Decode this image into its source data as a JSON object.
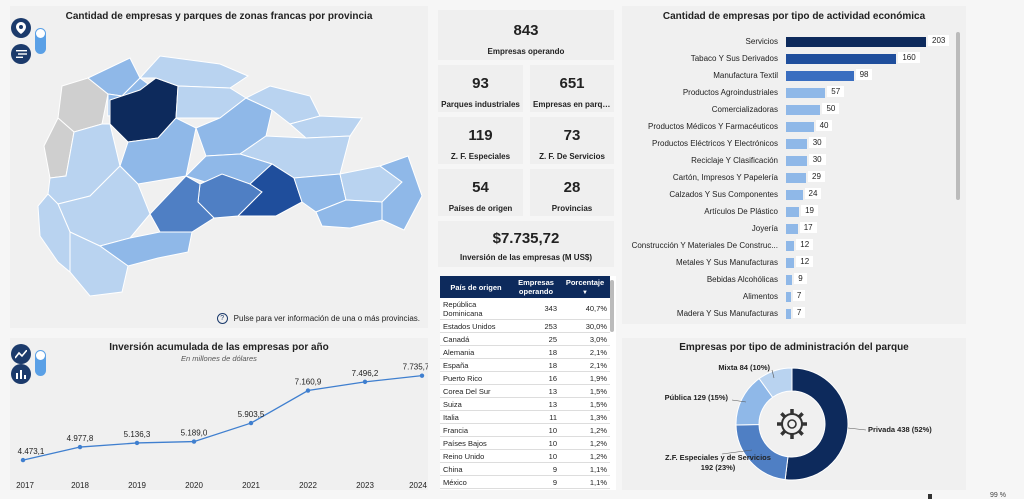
{
  "map": {
    "title": "Cantidad de empresas y parques de zonas francas por provincia",
    "hint": "Pulse para ver información de una o más provincias."
  },
  "kpis": {
    "empresas": {
      "value": "843",
      "label": "Empresas operando"
    },
    "parques": {
      "value": "93",
      "label": "Parques industriales"
    },
    "empresas_parque": {
      "value": "651",
      "label": "Empresas en parque..."
    },
    "zf_especiales": {
      "value": "119",
      "label": "Z. F. Especiales"
    },
    "zf_servicios": {
      "value": "73",
      "label": "Z. F. De Servicios"
    },
    "paises": {
      "value": "54",
      "label": "Países de origen"
    },
    "provincias": {
      "value": "28",
      "label": "Provincias"
    },
    "inversion": {
      "value": "$7.735,72",
      "label": "Inversión de las empresas (M US$)"
    }
  },
  "table": {
    "headers": [
      "País de origen",
      "Empresas operando",
      "Porcentaje"
    ],
    "rows": [
      [
        "República Dominicana",
        "343",
        "40,7%"
      ],
      [
        "Estados Unidos",
        "253",
        "30,0%"
      ],
      [
        "Canadá",
        "25",
        "3,0%"
      ],
      [
        "Alemania",
        "18",
        "2,1%"
      ],
      [
        "España",
        "18",
        "2,1%"
      ],
      [
        "Puerto Rico",
        "16",
        "1,9%"
      ],
      [
        "Corea Del Sur",
        "13",
        "1,5%"
      ],
      [
        "Suiza",
        "13",
        "1,5%"
      ],
      [
        "Italia",
        "11",
        "1,3%"
      ],
      [
        "Francia",
        "10",
        "1,2%"
      ],
      [
        "Países Bajos",
        "10",
        "1,2%"
      ],
      [
        "Reino Unido",
        "10",
        "1,2%"
      ],
      [
        "China",
        "9",
        "1,1%"
      ],
      [
        "México",
        "9",
        "1,1%"
      ]
    ]
  },
  "colors": {
    "navy": "#0d2a5c",
    "blue": "#1f4e9c",
    "mid": "#4f7fc4",
    "light": "#8fb8e8",
    "lightest": "#b9d3f0",
    "gray": "#cfcfcf",
    "line": "#3f7fcf"
  },
  "chart_data": [
    {
      "type": "bar",
      "title": "Cantidad de empresas por tipo de actividad económica",
      "categories": [
        "Servicios",
        "Tabaco Y Sus Derivados",
        "Manufactura Textil",
        "Productos Agroindustriales",
        "Comercializadoras",
        "Productos Médicos Y Farmacéuticos",
        "Productos Eléctricos Y Electrónicos",
        "Reciclaje Y Clasificación",
        "Cartón, Impresos Y Papelería",
        "Calzados Y Sus Componentes",
        "Artículos De Plástico",
        "Joyería",
        "Construcción Y Materiales De Construc...",
        "Metales Y Sus Manufacturas",
        "Bebidas Alcohólicas",
        "Alimentos",
        "Madera Y Sus Manufacturas"
      ],
      "values": [
        203,
        160,
        98,
        57,
        50,
        40,
        30,
        30,
        29,
        24,
        19,
        17,
        12,
        12,
        9,
        7,
        7
      ]
    },
    {
      "type": "line",
      "title": "Inversión acumulada de las empresas por año",
      "subtitle": "En millones de dólares",
      "categories": [
        "2017",
        "2018",
        "2019",
        "2020",
        "2021",
        "2022",
        "2023",
        "2024"
      ],
      "values": [
        4473.1,
        4977.8,
        5136.3,
        5189.0,
        5903.5,
        7160.9,
        7496.2,
        7735.7
      ],
      "labels": [
        "4.473,1",
        "4.977,8",
        "5.136,3",
        "5.189,0",
        "5.903,5",
        "7.160,9",
        "7.496,2",
        "7.735,7"
      ]
    },
    {
      "type": "pie",
      "title": "Empresas por tipo de administración del parque",
      "slices": [
        {
          "name": "Privada 438 (52%)",
          "value": 438,
          "color": "#0d2a5c"
        },
        {
          "name": "Z.F. Especiales y de Servicios 192 (23%)",
          "value": 192,
          "color": "#4f7fc4"
        },
        {
          "name": "Pública 129 (15%)",
          "value": 129,
          "color": "#8fb8e8"
        },
        {
          "name": "Mixta 84 (10%)",
          "value": 84,
          "color": "#b9d3f0"
        }
      ]
    }
  ],
  "status": {
    "zoom": "99 %"
  }
}
